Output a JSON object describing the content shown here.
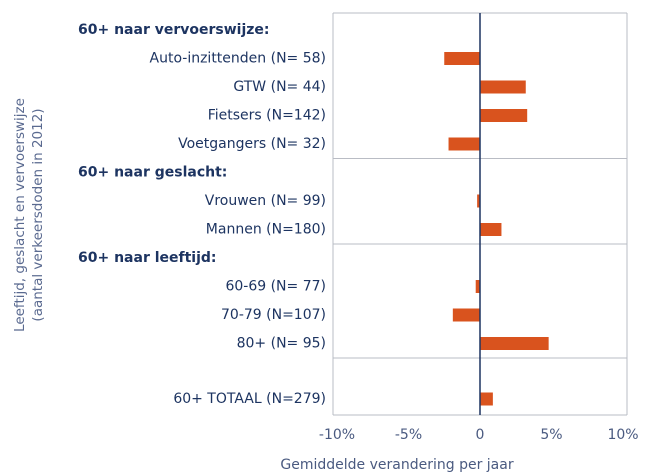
{
  "chart_data": {
    "type": "bar",
    "groups": [
      {
        "name": "60+ naar vervoerswijze:",
        "categories": [
          "Auto-inzittenden (N= 58)",
          "GTW (N= 44)",
          "Fietsers (N=142)",
          "Voetgangers (N= 32)"
        ],
        "values": [
          -2.5,
          3.2,
          3.3,
          -2.2
        ]
      },
      {
        "name": "60+ naar geslacht:",
        "categories": [
          "Vrouwen (N= 99)",
          "Mannen (N=180)"
        ],
        "values": [
          -0.2,
          1.5
        ]
      },
      {
        "name": "60+ naar leeftijd:",
        "categories": [
          "60-69 (N= 77)",
          "70-79 (N=107)",
          "80+ (N= 95)"
        ],
        "values": [
          -0.3,
          -1.9,
          4.8
        ]
      }
    ],
    "total": {
      "category": "60+ TOTAAL (N=279)",
      "value": 0.9
    },
    "color": "#d9531e",
    "xlim": [
      -10,
      10
    ],
    "xticks": [
      {
        "value": -10,
        "label": "-10%"
      },
      {
        "value": -5,
        "label": "-5%"
      },
      0,
      {
        "value": 5,
        "label": "5%"
      },
      {
        "value": 10,
        "label": "10%"
      }
    ],
    "xlabel": "Gemiddelde verandering per jaar",
    "ylabel": [
      "Leeftijd, geslacht en vervoerswijze",
      "(aantal verkeersdoden in 2012)"
    ]
  }
}
